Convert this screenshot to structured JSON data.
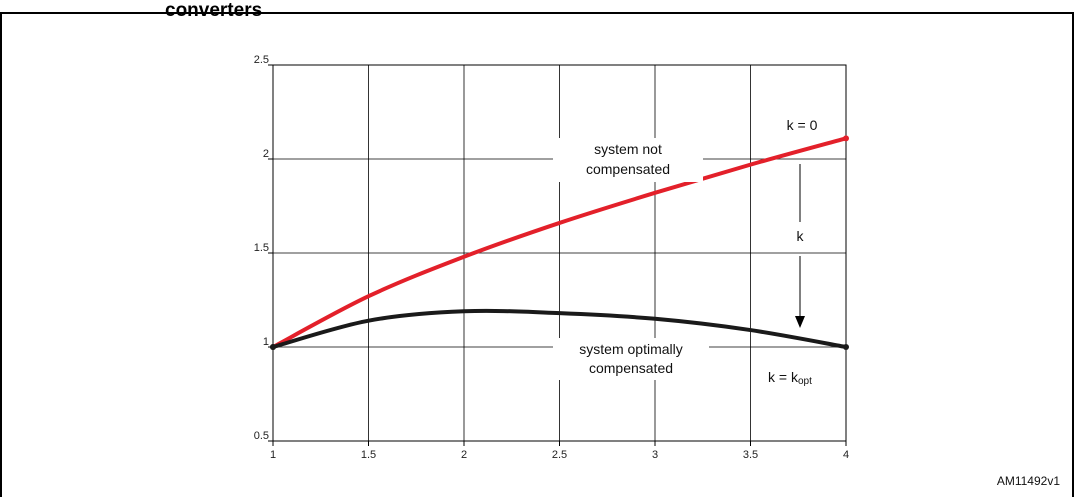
{
  "page_title": "converters",
  "figure_id": "AM11492v1",
  "annotations": {
    "upper_line1": "system not",
    "upper_line2": "compensated",
    "lower_line1": "system optimally",
    "lower_line2": "compensated",
    "k_zero": "k = 0",
    "k_mid": "k",
    "k_opt_main": "k = k",
    "k_opt_sub": "opt"
  },
  "colors": {
    "not_compensated": "#e3202a",
    "optimally_compensated": "#1a1a1a",
    "grid": "#000000"
  },
  "chart_data": {
    "type": "line",
    "title": "",
    "xlabel": "",
    "ylabel": "",
    "xlim": [
      1,
      4
    ],
    "ylim": [
      0.5,
      2.5
    ],
    "x_ticks": [
      "1",
      "1.5",
      "2",
      "2.5",
      "3",
      "3.5",
      "4"
    ],
    "y_ticks": [
      "0.5",
      "1",
      "1.5",
      "2",
      "2.5"
    ],
    "grid": true,
    "series": [
      {
        "name": "system not compensated",
        "color": "#e3202a",
        "x": [
          1,
          1.5,
          2,
          2.5,
          3,
          3.5,
          4
        ],
        "y": [
          1.0,
          1.27,
          1.48,
          1.66,
          1.82,
          1.97,
          2.11
        ]
      },
      {
        "name": "system optimally compensated",
        "color": "#1a1a1a",
        "x": [
          1,
          1.5,
          2,
          2.5,
          3,
          3.5,
          4
        ],
        "y": [
          1.0,
          1.14,
          1.19,
          1.18,
          1.15,
          1.09,
          1.0
        ]
      }
    ]
  }
}
